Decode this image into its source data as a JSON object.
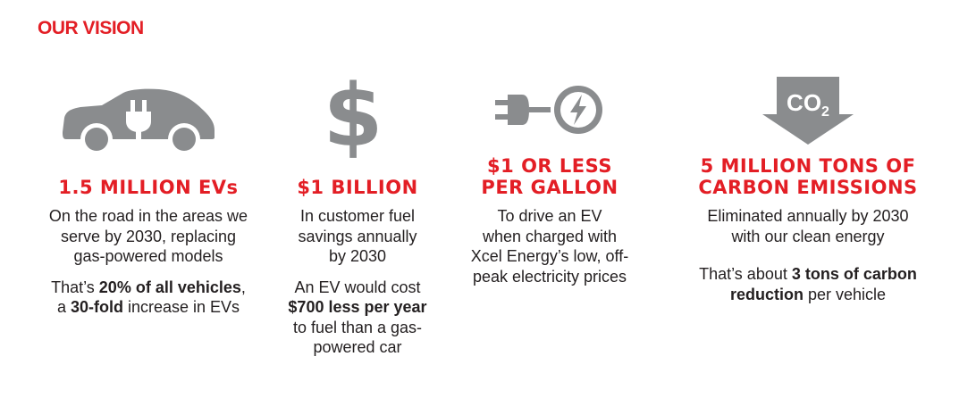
{
  "title": "OUR VISION",
  "colors": {
    "accent": "#e31e25",
    "icon_gray": "#8a8c8e",
    "text": "#231f20"
  },
  "columns": [
    {
      "icon": "ev-car-plug-icon",
      "headline": "1.5 MILLION EVs",
      "lines": [
        "On the road in the areas we",
        "serve by 2030, replacing",
        "gas-powered models"
      ],
      "stat_a": "That’s ",
      "stat_b": "20% of all vehicles",
      "stat_c": ",",
      "stat_d": "a ",
      "stat_e": "30-fold",
      "stat_f": " increase in EVs"
    },
    {
      "icon": "dollar-sign-icon",
      "headline": "$1 BILLION",
      "lines": [
        "In customer fuel",
        "savings annually",
        "by 2030"
      ],
      "stat_a": "An EV would cost",
      "stat_b": "$700 less per year",
      "stat_c": "to fuel than a gas-",
      "stat_d": "powered car"
    },
    {
      "icon": "plug-lightning-icon",
      "headline_1": "$1 OR LESS",
      "headline_2": "PER GALLON",
      "lines": [
        "To drive an EV",
        "when charged with",
        "Xcel Energy’s low, off-",
        "peak electricity prices"
      ]
    },
    {
      "icon": "co2-down-arrow-icon",
      "co2": "CO",
      "co2_sub": "2",
      "headline_1": "5 MILLION TONS OF",
      "headline_2": "CARBON EMISSIONS",
      "lines": [
        "Eliminated annually by 2030",
        "with our clean energy"
      ],
      "stat_a": "That’s about ",
      "stat_b": "3 tons of carbon",
      "stat_c": "reduction",
      "stat_d": " per vehicle"
    }
  ]
}
